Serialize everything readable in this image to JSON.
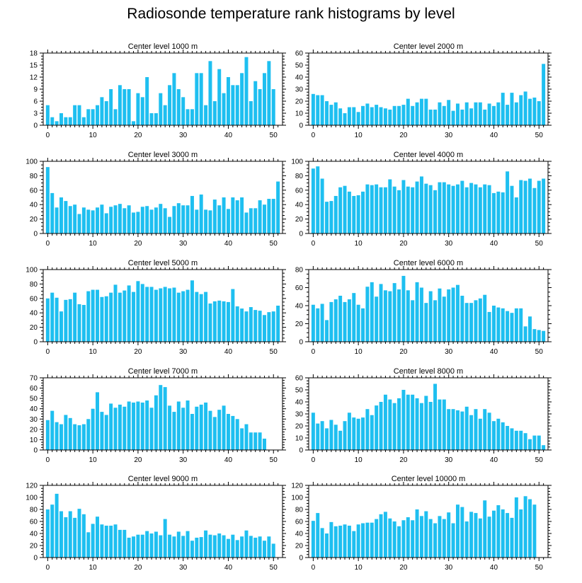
{
  "title": "Radiosonde temperature rank histograms by level",
  "colors": {
    "bar": "#1ebff0",
    "axis": "#000000",
    "background": "#ffffff"
  },
  "chart_data": [
    {
      "type": "bar",
      "title": "Center level 1000 m",
      "xlim": [
        -1,
        52
      ],
      "ylim": [
        0,
        18
      ],
      "xticks": [
        0,
        10,
        20,
        30,
        40,
        50
      ],
      "yticks": [
        0,
        3,
        6,
        9,
        12,
        15,
        18
      ],
      "values": [
        5,
        2,
        1,
        3,
        2,
        2,
        5,
        5,
        2,
        4,
        4,
        5,
        7,
        6,
        9,
        4,
        10,
        9,
        9,
        1,
        8,
        7,
        12,
        3,
        3,
        8,
        5,
        10,
        13,
        9,
        7,
        4,
        4,
        13,
        13,
        5,
        16,
        6,
        14,
        8,
        12,
        10,
        10,
        13,
        17,
        6,
        11,
        9,
        13,
        16,
        9
      ]
    },
    {
      "type": "bar",
      "title": "Center level 2000 m",
      "xlim": [
        -1,
        52
      ],
      "ylim": [
        0,
        60
      ],
      "xticks": [
        0,
        10,
        20,
        30,
        40,
        50
      ],
      "yticks": [
        0,
        10,
        20,
        30,
        40,
        50,
        60
      ],
      "values": [
        26,
        25,
        25,
        20,
        17,
        19,
        14,
        10,
        15,
        15,
        11,
        16,
        18,
        15,
        17,
        15,
        14,
        13,
        16,
        16,
        17,
        22,
        16,
        19,
        22,
        22,
        13,
        13,
        19,
        16,
        21,
        12,
        18,
        13,
        19,
        14,
        19,
        19,
        13,
        18,
        16,
        19,
        27,
        17,
        27,
        19,
        25,
        28,
        22,
        23,
        20,
        51
      ]
    },
    {
      "type": "bar",
      "title": "Center level 3000 m",
      "xlim": [
        -1,
        52
      ],
      "ylim": [
        0,
        100
      ],
      "xticks": [
        0,
        10,
        20,
        30,
        40,
        50
      ],
      "yticks": [
        0,
        20,
        40,
        60,
        80,
        100
      ],
      "values": [
        92,
        56,
        36,
        50,
        45,
        38,
        40,
        27,
        36,
        33,
        32,
        36,
        40,
        28,
        37,
        39,
        41,
        35,
        39,
        29,
        30,
        37,
        38,
        33,
        36,
        41,
        35,
        23,
        38,
        42,
        39,
        39,
        52,
        33,
        54,
        33,
        32,
        47,
        39,
        50,
        34,
        50,
        46,
        50,
        29,
        35,
        35,
        46,
        40,
        48,
        48,
        72
      ]
    },
    {
      "type": "bar",
      "title": "Center level 4000 m",
      "xlim": [
        -1,
        52
      ],
      "ylim": [
        0,
        100
      ],
      "xticks": [
        0,
        10,
        20,
        30,
        40,
        50
      ],
      "yticks": [
        0,
        20,
        40,
        60,
        80,
        100
      ],
      "values": [
        90,
        93,
        76,
        44,
        45,
        52,
        64,
        66,
        58,
        52,
        53,
        58,
        68,
        67,
        68,
        64,
        64,
        75,
        65,
        60,
        74,
        65,
        64,
        72,
        79,
        69,
        67,
        60,
        71,
        71,
        68,
        66,
        68,
        73,
        64,
        70,
        68,
        64,
        68,
        67,
        56,
        58,
        57,
        86,
        66,
        50,
        74,
        73,
        76,
        63,
        73,
        76
      ]
    },
    {
      "type": "bar",
      "title": "Center level 5000 m",
      "xlim": [
        -1,
        52
      ],
      "ylim": [
        0,
        100
      ],
      "xticks": [
        0,
        10,
        20,
        30,
        40,
        50
      ],
      "yticks": [
        0,
        20,
        40,
        60,
        80,
        100
      ],
      "values": [
        60,
        68,
        61,
        42,
        58,
        59,
        68,
        52,
        51,
        70,
        72,
        72,
        62,
        63,
        68,
        79,
        68,
        71,
        78,
        69,
        84,
        80,
        76,
        76,
        72,
        74,
        76,
        74,
        75,
        68,
        70,
        72,
        85,
        69,
        66,
        69,
        53,
        56,
        57,
        56,
        55,
        73,
        49,
        46,
        42,
        48,
        44,
        43,
        37,
        41,
        42,
        50
      ]
    },
    {
      "type": "bar",
      "title": "Center level 6000 m",
      "xlim": [
        -1,
        52
      ],
      "ylim": [
        0,
        80
      ],
      "xticks": [
        0,
        10,
        20,
        30,
        40,
        50
      ],
      "yticks": [
        0,
        20,
        40,
        60,
        80
      ],
      "values": [
        41,
        37,
        42,
        24,
        44,
        47,
        51,
        44,
        47,
        54,
        41,
        37,
        61,
        66,
        50,
        64,
        57,
        56,
        65,
        58,
        73,
        57,
        46,
        66,
        60,
        43,
        56,
        46,
        59,
        50,
        58,
        60,
        63,
        51,
        43,
        43,
        46,
        48,
        52,
        33,
        40,
        38,
        37,
        34,
        32,
        37,
        37,
        17,
        28,
        14,
        13,
        12
      ]
    },
    {
      "type": "bar",
      "title": "Center level 7000 m",
      "xlim": [
        -1,
        52
      ],
      "ylim": [
        0,
        70
      ],
      "xticks": [
        0,
        10,
        20,
        30,
        40,
        50
      ],
      "yticks": [
        0,
        10,
        20,
        30,
        40,
        50,
        60,
        70
      ],
      "values": [
        29,
        38,
        27,
        25,
        34,
        31,
        25,
        24,
        25,
        30,
        40,
        56,
        37,
        34,
        45,
        41,
        44,
        42,
        47,
        46,
        47,
        46,
        48,
        41,
        53,
        63,
        61,
        43,
        37,
        47,
        41,
        48,
        35,
        42,
        44,
        46,
        38,
        32,
        39,
        43,
        35,
        33,
        30,
        21,
        25,
        17,
        17,
        17,
        11
      ]
    },
    {
      "type": "bar",
      "title": "Center level 8000 m",
      "xlim": [
        -1,
        52
      ],
      "ylim": [
        0,
        60
      ],
      "xticks": [
        0,
        10,
        20,
        30,
        40,
        50
      ],
      "yticks": [
        0,
        10,
        20,
        30,
        40,
        50,
        60
      ],
      "values": [
        31,
        22,
        24,
        18,
        25,
        21,
        16,
        24,
        31,
        27,
        26,
        27,
        34,
        29,
        37,
        40,
        46,
        42,
        39,
        43,
        50,
        46,
        46,
        43,
        39,
        45,
        40,
        55,
        42,
        42,
        34,
        34,
        33,
        32,
        36,
        29,
        34,
        26,
        34,
        31,
        24,
        26,
        23,
        20,
        18,
        16,
        16,
        14,
        9,
        12,
        12,
        4
      ]
    },
    {
      "type": "bar",
      "title": "Center level 9000 m",
      "xlim": [
        -1,
        52
      ],
      "ylim": [
        0,
        120
      ],
      "xticks": [
        0,
        10,
        20,
        30,
        40,
        50
      ],
      "yticks": [
        0,
        20,
        40,
        60,
        80,
        100,
        120
      ],
      "values": [
        80,
        88,
        106,
        77,
        67,
        77,
        66,
        81,
        72,
        42,
        56,
        68,
        55,
        53,
        53,
        55,
        46,
        46,
        33,
        35,
        38,
        38,
        44,
        40,
        43,
        37,
        64,
        38,
        35,
        43,
        36,
        44,
        28,
        33,
        34,
        45,
        38,
        37,
        40,
        37,
        31,
        38,
        29,
        35,
        45,
        36,
        33,
        35,
        28,
        35,
        23
      ]
    },
    {
      "type": "bar",
      "title": "Center level 10000 m",
      "xlim": [
        -1,
        52
      ],
      "ylim": [
        0,
        120
      ],
      "xticks": [
        0,
        10,
        20,
        30,
        40,
        50
      ],
      "yticks": [
        0,
        20,
        40,
        60,
        80,
        100,
        120
      ],
      "values": [
        61,
        74,
        49,
        40,
        59,
        52,
        53,
        55,
        53,
        44,
        55,
        57,
        58,
        58,
        64,
        72,
        76,
        65,
        60,
        52,
        62,
        67,
        62,
        80,
        69,
        77,
        64,
        57,
        69,
        64,
        75,
        57,
        88,
        84,
        60,
        76,
        74,
        65,
        95,
        68,
        78,
        87,
        80,
        74,
        66,
        100,
        80,
        102,
        97,
        88
      ]
    }
  ]
}
